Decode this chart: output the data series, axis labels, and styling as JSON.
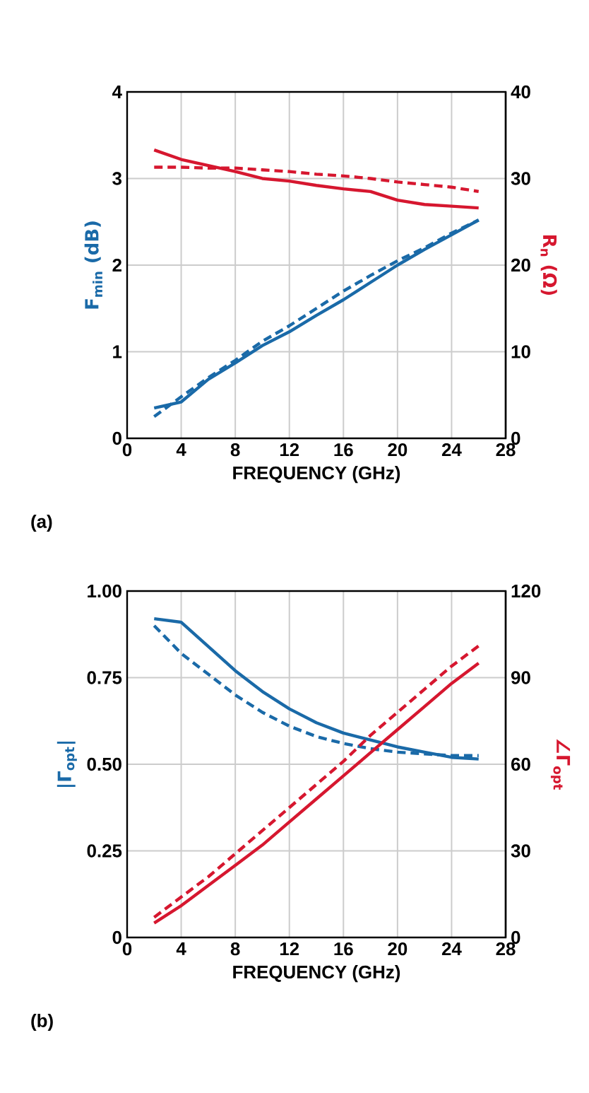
{
  "chart_data": [
    {
      "type": "line",
      "xlabel": "FREQUENCY (GHz)",
      "ylabel": "F$_{min}$ (dB)",
      "y2label": "R$_{n}$ (Ω)",
      "annotations": [
        "(a)"
      ],
      "x": [
        2,
        4,
        6,
        8,
        10,
        12,
        14,
        16,
        18,
        20,
        22,
        24,
        26
      ],
      "xlim": [
        0,
        28
      ],
      "xticks": [
        0,
        4,
        8,
        12,
        16,
        20,
        24,
        28
      ],
      "ylim": [
        0,
        4
      ],
      "yticks": [
        0,
        1,
        2,
        3,
        4
      ],
      "y2lim": [
        0,
        40
      ],
      "y2ticks": [
        0,
        10,
        20,
        30,
        40
      ],
      "grid": true,
      "series": [
        {
          "color": "#1a6aa8",
          "line_style": "solid",
          "values": [
            0.35,
            0.42,
            0.68,
            0.87,
            1.07,
            1.23,
            1.42,
            1.6,
            1.8,
            2.0,
            2.18,
            2.35,
            2.52
          ]
        },
        {
          "color": "#1a6aa8",
          "line_style": "dashed",
          "values": [
            0.25,
            0.48,
            0.7,
            0.9,
            1.12,
            1.3,
            1.5,
            1.7,
            1.88,
            2.05,
            2.2,
            2.37,
            2.52
          ]
        },
        {
          "color": "#d6172f",
          "line_style": "solid",
          "axis": "y2",
          "values": [
            33.3,
            32.2,
            31.5,
            30.8,
            30.0,
            29.7,
            29.2,
            28.8,
            28.5,
            27.5,
            27.0,
            26.8,
            26.6
          ]
        },
        {
          "color": "#d6172f",
          "line_style": "dashed",
          "axis": "y2",
          "values": [
            31.3,
            31.3,
            31.2,
            31.2,
            31.0,
            30.8,
            30.5,
            30.3,
            30.0,
            29.6,
            29.3,
            29.0,
            28.5
          ]
        }
      ]
    },
    {
      "type": "line",
      "xlabel": "FREQUENCY (GHz)",
      "ylabel": "|Γ$_{opt}$|",
      "y2label": "∠Γ$_{opt}$",
      "annotations": [
        "(b)"
      ],
      "x": [
        2,
        4,
        6,
        8,
        10,
        12,
        14,
        16,
        18,
        20,
        22,
        24,
        26
      ],
      "xlim": [
        0,
        28
      ],
      "xticks": [
        0,
        4,
        8,
        12,
        16,
        20,
        24,
        28
      ],
      "ylim": [
        0,
        1
      ],
      "yticks": [
        0,
        {
          "value": 0.25,
          "label": "0.25"
        },
        {
          "value": 0.5,
          "label": "0.50"
        },
        {
          "value": 0.75,
          "label": "0.75"
        },
        {
          "value": 1,
          "label": "1.00"
        }
      ],
      "y2lim": [
        0,
        120
      ],
      "y2ticks": [
        0,
        30,
        60,
        90,
        120
      ],
      "grid": true,
      "series": [
        {
          "color": "#1a6aa8",
          "line_style": "solid",
          "values": [
            0.92,
            0.91,
            0.84,
            0.77,
            0.71,
            0.66,
            0.62,
            0.59,
            0.57,
            0.55,
            0.535,
            0.52,
            0.515
          ]
        },
        {
          "color": "#1a6aa8",
          "line_style": "dashed",
          "values": [
            0.9,
            0.82,
            0.76,
            0.7,
            0.65,
            0.61,
            0.58,
            0.56,
            0.545,
            0.535,
            0.53,
            0.525,
            0.525
          ]
        },
        {
          "color": "#d6172f",
          "line_style": "solid",
          "axis": "y2",
          "values": [
            5,
            11,
            18,
            25,
            32,
            40,
            48,
            56,
            64,
            72,
            80,
            88,
            95
          ]
        },
        {
          "color": "#d6172f",
          "line_style": "dashed",
          "axis": "y2",
          "values": [
            7,
            14,
            21,
            29,
            37,
            45,
            53,
            61,
            70,
            78,
            86,
            94,
            101
          ]
        }
      ]
    }
  ]
}
